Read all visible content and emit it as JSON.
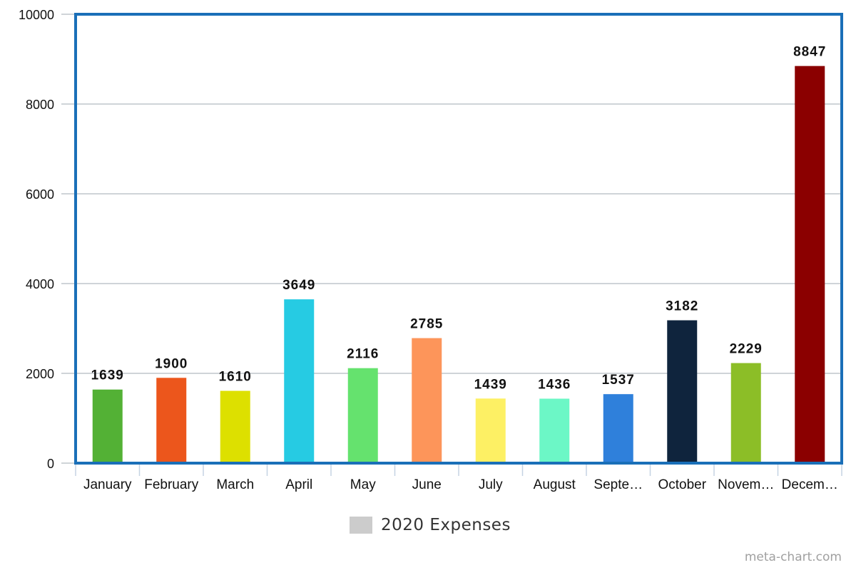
{
  "chart_data": {
    "type": "bar",
    "categories": [
      "January",
      "February",
      "March",
      "April",
      "May",
      "June",
      "July",
      "August",
      "Septe…",
      "October",
      "Novem…",
      "Decem…"
    ],
    "series": [
      {
        "name": "2020 Expenses",
        "values": [
          1639,
          1900,
          1610,
          3649,
          2116,
          2785,
          1439,
          1436,
          1537,
          3182,
          2229,
          8847
        ],
        "value_labels": [
          "1639",
          "1900",
          "1610",
          "3649",
          "2116",
          "2785",
          "1439",
          "1436",
          "1537",
          "3182",
          "2229",
          "8847"
        ],
        "colors": [
          "#53b135",
          "#ec561c",
          "#dde000",
          "#26cbe3",
          "#65e26e",
          "#fd955a",
          "#fdf064",
          "#6cf7c6",
          "#2f80db",
          "#0f243d",
          "#8cbe27",
          "#8b0000"
        ]
      }
    ],
    "yticks": [
      "0",
      "2000",
      "4000",
      "6000",
      "8000",
      "10000"
    ],
    "ylim": [
      0,
      10000
    ],
    "grid": true,
    "legend": "bottom",
    "frame_color": "#1a6fb8",
    "grid_color": "#bfc5cc"
  },
  "credit": "meta-chart.com"
}
